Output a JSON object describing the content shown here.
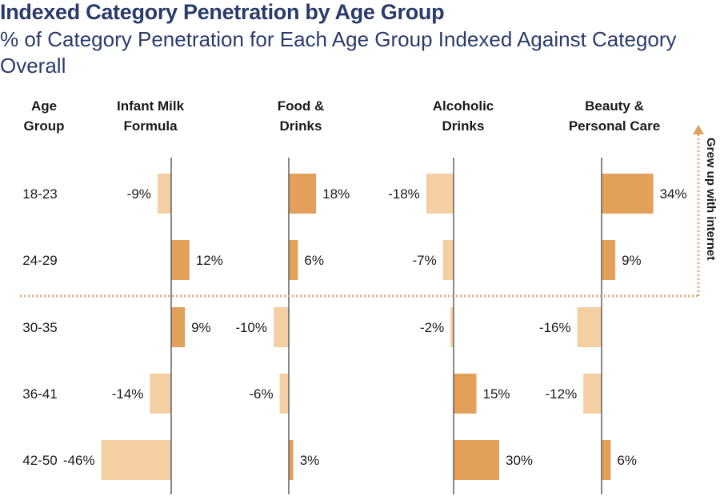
{
  "chart_data": {
    "type": "bar",
    "title": "Indexed Category Penetration by Age Group",
    "subtitle": "% of Category Penetration for Each Age Group Indexed Against Category Overall",
    "row_header": [
      "Age",
      "Group"
    ],
    "categories": [
      "18-23",
      "24-29",
      "30-35",
      "36-41",
      "42-50"
    ],
    "series": [
      {
        "name": "Infant Milk Formula",
        "header": [
          "Infant Milk",
          "Formula"
        ],
        "values": [
          -9,
          12,
          9,
          -14,
          -46
        ],
        "labels": [
          "-9%",
          "12%",
          "9%",
          "-14%",
          "-46%"
        ]
      },
      {
        "name": "Food & Drinks",
        "header": [
          "Food &",
          "Drinks"
        ],
        "values": [
          18,
          6,
          -10,
          -6,
          3
        ],
        "labels": [
          "18%",
          "6%",
          "-10%",
          "-6%",
          "3%"
        ]
      },
      {
        "name": "Alcoholic Drinks",
        "header": [
          "Alcoholic",
          "Drinks"
        ],
        "values": [
          -18,
          -7,
          -2,
          15,
          30
        ],
        "labels": [
          "-18%",
          "-7%",
          "-2%",
          "15%",
          "30%"
        ]
      },
      {
        "name": "Beauty & Personal Care",
        "header": [
          "Beauty &",
          "Personal Care"
        ],
        "values": [
          34,
          9,
          -16,
          -12,
          6
        ],
        "labels": [
          "34%",
          "9%",
          "-16%",
          "-12%",
          "6%"
        ]
      }
    ],
    "annotation": "Grew up with internet",
    "colors": {
      "positive": "#e3a05b",
      "negative": "#f4cfa3",
      "axis": "#555555",
      "divider": "#e0a25e",
      "title": "#2a3b6b"
    }
  }
}
